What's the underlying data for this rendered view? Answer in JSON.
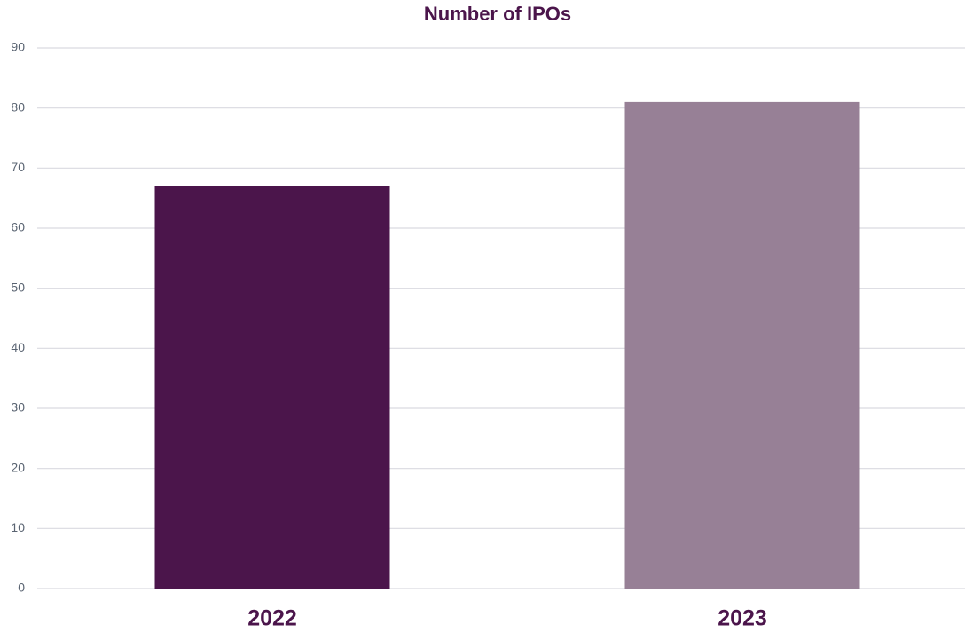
{
  "chart_data": {
    "type": "bar",
    "title": "Number of IPOs",
    "categories": [
      "2022",
      "2023"
    ],
    "values": [
      67,
      81
    ],
    "colors": [
      "#4b154b",
      "#978096"
    ],
    "ylim": [
      0,
      90
    ],
    "yticks": [
      0,
      10,
      20,
      30,
      40,
      50,
      60,
      70,
      80,
      90
    ],
    "grid": true
  }
}
